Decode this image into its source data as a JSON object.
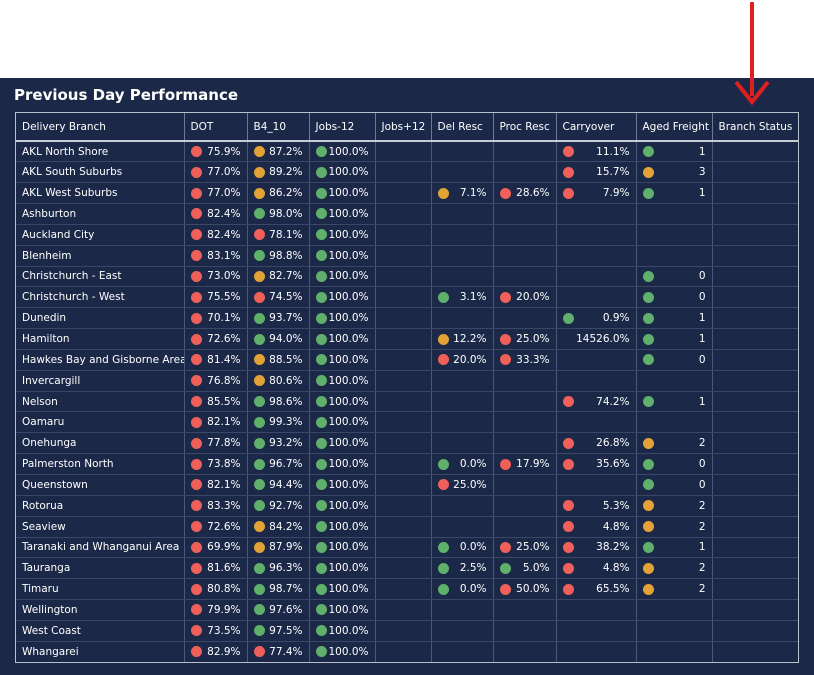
{
  "title": "Previous Day Performance",
  "colors": {
    "red": "#f0605a",
    "green": "#5fb06b",
    "amber": "#e2a236",
    "background": "#1b2847",
    "annotation_arrow": "#e01f1f"
  },
  "columns": [
    "Delivery Branch",
    "DOT",
    "B4_10",
    "Jobs-12",
    "Jobs+12",
    "Del Resc",
    "Proc Resc",
    "Carryover",
    "Aged Freight",
    "Branch Status"
  ],
  "rows": [
    {
      "branch": "AKL North Shore",
      "cells": [
        [
          "red",
          "75.9%"
        ],
        [
          "amber",
          "87.2%"
        ],
        [
          "green",
          "100.0%"
        ],
        null,
        null,
        null,
        [
          "red",
          "11.1%"
        ],
        [
          "green",
          "1"
        ],
        null
      ]
    },
    {
      "branch": "AKL South Suburbs",
      "cells": [
        [
          "red",
          "77.0%"
        ],
        [
          "amber",
          "89.2%"
        ],
        [
          "green",
          "100.0%"
        ],
        null,
        null,
        null,
        [
          "red",
          "15.7%"
        ],
        [
          "amber",
          "3"
        ],
        null
      ]
    },
    {
      "branch": "AKL West Suburbs",
      "cells": [
        [
          "red",
          "77.0%"
        ],
        [
          "amber",
          "86.2%"
        ],
        [
          "green",
          "100.0%"
        ],
        null,
        [
          "amber",
          "7.1%"
        ],
        [
          "red",
          "28.6%"
        ],
        [
          "red",
          "7.9%"
        ],
        [
          "green",
          "1"
        ],
        null
      ]
    },
    {
      "branch": "Ashburton",
      "cells": [
        [
          "red",
          "82.4%"
        ],
        [
          "green",
          "98.0%"
        ],
        [
          "green",
          "100.0%"
        ],
        null,
        null,
        null,
        null,
        null,
        null
      ]
    },
    {
      "branch": "Auckland City",
      "cells": [
        [
          "red",
          "82.4%"
        ],
        [
          "red",
          "78.1%"
        ],
        [
          "green",
          "100.0%"
        ],
        null,
        null,
        null,
        null,
        null,
        null
      ]
    },
    {
      "branch": "Blenheim",
      "cells": [
        [
          "red",
          "83.1%"
        ],
        [
          "green",
          "98.8%"
        ],
        [
          "green",
          "100.0%"
        ],
        null,
        null,
        null,
        null,
        null,
        null
      ]
    },
    {
      "branch": "Christchurch - East",
      "cells": [
        [
          "red",
          "73.0%"
        ],
        [
          "amber",
          "82.7%"
        ],
        [
          "green",
          "100.0%"
        ],
        null,
        null,
        null,
        null,
        [
          "green",
          "0"
        ],
        null
      ]
    },
    {
      "branch": "Christchurch - West",
      "cells": [
        [
          "red",
          "75.5%"
        ],
        [
          "red",
          "74.5%"
        ],
        [
          "green",
          "100.0%"
        ],
        null,
        [
          "green",
          "3.1%"
        ],
        [
          "red",
          "20.0%"
        ],
        null,
        [
          "green",
          "0"
        ],
        null
      ]
    },
    {
      "branch": "Dunedin",
      "cells": [
        [
          "red",
          "70.1%"
        ],
        [
          "green",
          "93.7%"
        ],
        [
          "green",
          "100.0%"
        ],
        null,
        null,
        null,
        [
          "green",
          "0.9%"
        ],
        [
          "green",
          "1"
        ],
        null
      ]
    },
    {
      "branch": "Hamilton",
      "cells": [
        [
          "red",
          "72.6%"
        ],
        [
          "green",
          "94.0%"
        ],
        [
          "green",
          "100.0%"
        ],
        null,
        [
          "amber",
          "12.2%"
        ],
        [
          "red",
          "25.0%"
        ],
        [
          "none",
          "14526.0%"
        ],
        [
          "green",
          "1"
        ],
        null
      ]
    },
    {
      "branch": "Hawkes Bay and Gisborne Area",
      "cells": [
        [
          "red",
          "81.4%"
        ],
        [
          "amber",
          "88.5%"
        ],
        [
          "green",
          "100.0%"
        ],
        null,
        [
          "red",
          "20.0%"
        ],
        [
          "red",
          "33.3%"
        ],
        null,
        [
          "green",
          "0"
        ],
        null
      ]
    },
    {
      "branch": "Invercargill",
      "cells": [
        [
          "red",
          "76.8%"
        ],
        [
          "amber",
          "80.6%"
        ],
        [
          "green",
          "100.0%"
        ],
        null,
        null,
        null,
        null,
        null,
        null
      ]
    },
    {
      "branch": "Nelson",
      "cells": [
        [
          "red",
          "85.5%"
        ],
        [
          "green",
          "98.6%"
        ],
        [
          "green",
          "100.0%"
        ],
        null,
        null,
        null,
        [
          "red",
          "74.2%"
        ],
        [
          "green",
          "1"
        ],
        null
      ]
    },
    {
      "branch": "Oamaru",
      "cells": [
        [
          "red",
          "82.1%"
        ],
        [
          "green",
          "99.3%"
        ],
        [
          "green",
          "100.0%"
        ],
        null,
        null,
        null,
        null,
        null,
        null
      ]
    },
    {
      "branch": "Onehunga",
      "cells": [
        [
          "red",
          "77.8%"
        ],
        [
          "green",
          "93.2%"
        ],
        [
          "green",
          "100.0%"
        ],
        null,
        null,
        null,
        [
          "red",
          "26.8%"
        ],
        [
          "amber",
          "2"
        ],
        null
      ]
    },
    {
      "branch": "Palmerston North",
      "cells": [
        [
          "red",
          "73.8%"
        ],
        [
          "green",
          "96.7%"
        ],
        [
          "green",
          "100.0%"
        ],
        null,
        [
          "green",
          "0.0%"
        ],
        [
          "red",
          "17.9%"
        ],
        [
          "red",
          "35.6%"
        ],
        [
          "green",
          "0"
        ],
        null
      ]
    },
    {
      "branch": "Queenstown",
      "cells": [
        [
          "red",
          "82.1%"
        ],
        [
          "green",
          "94.4%"
        ],
        [
          "green",
          "100.0%"
        ],
        null,
        [
          "red",
          "25.0%"
        ],
        null,
        null,
        [
          "green",
          "0"
        ],
        null
      ]
    },
    {
      "branch": "Rotorua",
      "cells": [
        [
          "red",
          "83.3%"
        ],
        [
          "green",
          "92.7%"
        ],
        [
          "green",
          "100.0%"
        ],
        null,
        null,
        null,
        [
          "red",
          "5.3%"
        ],
        [
          "amber",
          "2"
        ],
        null
      ]
    },
    {
      "branch": "Seaview",
      "cells": [
        [
          "red",
          "72.6%"
        ],
        [
          "amber",
          "84.2%"
        ],
        [
          "green",
          "100.0%"
        ],
        null,
        null,
        null,
        [
          "red",
          "4.8%"
        ],
        [
          "amber",
          "2"
        ],
        null
      ]
    },
    {
      "branch": "Taranaki and Whanganui Area",
      "cells": [
        [
          "red",
          "69.9%"
        ],
        [
          "amber",
          "87.9%"
        ],
        [
          "green",
          "100.0%"
        ],
        null,
        [
          "green",
          "0.0%"
        ],
        [
          "red",
          "25.0%"
        ],
        [
          "red",
          "38.2%"
        ],
        [
          "green",
          "1"
        ],
        null
      ]
    },
    {
      "branch": "Tauranga",
      "cells": [
        [
          "red",
          "81.6%"
        ],
        [
          "green",
          "96.3%"
        ],
        [
          "green",
          "100.0%"
        ],
        null,
        [
          "green",
          "2.5%"
        ],
        [
          "green",
          "5.0%"
        ],
        [
          "red",
          "4.8%"
        ],
        [
          "amber",
          "2"
        ],
        null
      ]
    },
    {
      "branch": "Timaru",
      "cells": [
        [
          "red",
          "80.8%"
        ],
        [
          "green",
          "98.7%"
        ],
        [
          "green",
          "100.0%"
        ],
        null,
        [
          "green",
          "0.0%"
        ],
        [
          "red",
          "50.0%"
        ],
        [
          "red",
          "65.5%"
        ],
        [
          "amber",
          "2"
        ],
        null
      ]
    },
    {
      "branch": "Wellington",
      "cells": [
        [
          "red",
          "79.9%"
        ],
        [
          "green",
          "97.6%"
        ],
        [
          "green",
          "100.0%"
        ],
        null,
        null,
        null,
        null,
        null,
        null
      ]
    },
    {
      "branch": "West Coast",
      "cells": [
        [
          "red",
          "73.5%"
        ],
        [
          "green",
          "97.5%"
        ],
        [
          "green",
          "100.0%"
        ],
        null,
        null,
        null,
        null,
        null,
        null
      ]
    },
    {
      "branch": "Whangarei",
      "cells": [
        [
          "red",
          "82.9%"
        ],
        [
          "red",
          "77.4%"
        ],
        [
          "green",
          "100.0%"
        ],
        null,
        null,
        null,
        null,
        null,
        null
      ]
    }
  ]
}
